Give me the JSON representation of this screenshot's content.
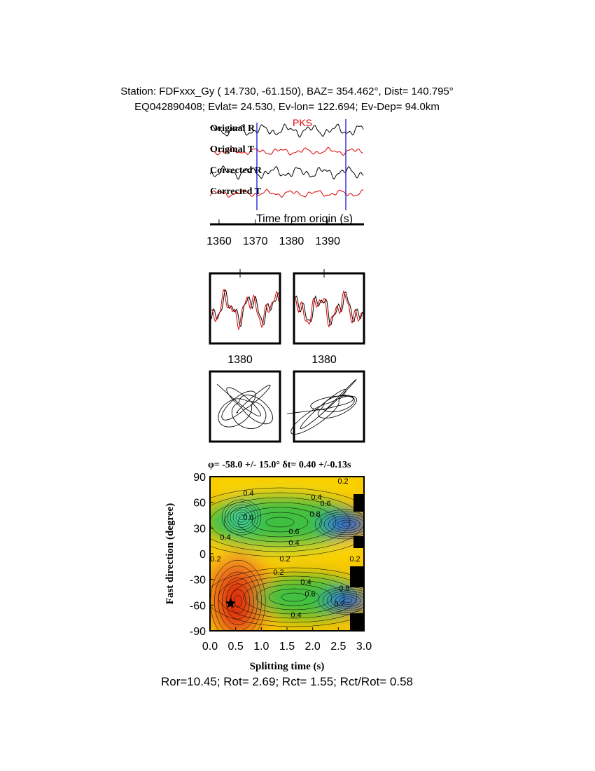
{
  "header": {
    "line1": "Station: FDFxxx_Gy (  14.730,  -61.150), BAZ=  354.462°, Dist=  140.795°",
    "line2": "EQ042890408; Evlat=  24.530, Ev-lon= 122.694; Ev-Dep= 94.0km"
  },
  "traces": {
    "labels": [
      "Original R",
      "Original T",
      "Corrected R",
      "Corrected T"
    ],
    "phase": "PKS",
    "xlabel": "Time from origin (s)",
    "xlim": [
      1357.5,
      1400
    ],
    "xticks": [
      1360,
      1370,
      1380,
      1390
    ]
  },
  "waveforms": {
    "xticks": [
      1380
    ]
  },
  "contour": {
    "title": "φ= -58.0 +/- 15.0° δt= 0.40 +/-0.13s",
    "xlabel": "Splitting time (s)",
    "ylabel": "Fast direction (degree)",
    "xlim": [
      0,
      3
    ],
    "ylim": [
      -90,
      90
    ],
    "xticks": [
      {
        "value": 0,
        "label": "0.0"
      },
      {
        "value": 0.5,
        "label": "0.5"
      },
      {
        "value": 1,
        "label": "1.0"
      },
      {
        "value": 1.5,
        "label": "1.5"
      },
      {
        "value": 2,
        "label": "2.0"
      },
      {
        "value": 2.5,
        "label": "2.5"
      },
      {
        "value": 3,
        "label": "3.0"
      }
    ],
    "yticks": [
      -90,
      -60,
      -30,
      0,
      30,
      60,
      90
    ],
    "contour_labels": [
      "0.2",
      "0.4",
      "0.6",
      "0.8"
    ],
    "best": {
      "dt": 0.4,
      "phi": -58
    }
  },
  "footer": "Ror=10.45; Rot= 2.69; Rct= 1.55; Rct/Rot= 0.58"
}
